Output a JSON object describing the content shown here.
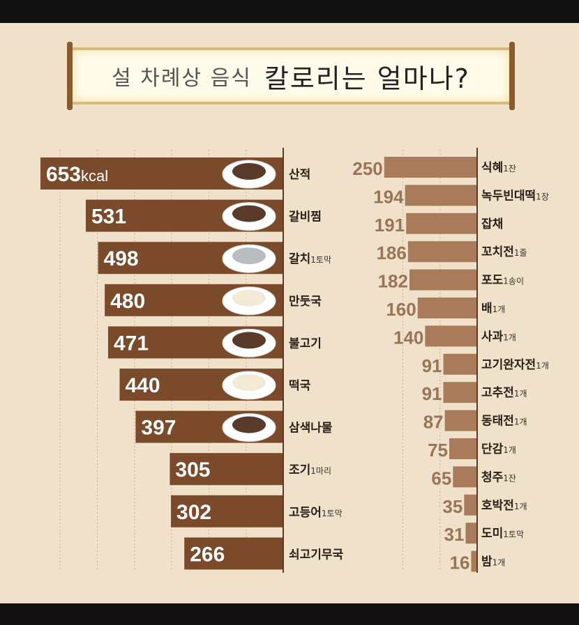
{
  "title": {
    "part1": "설 차례상 음식",
    "part2": "칼로리는 얼마나?"
  },
  "colors": {
    "left_bar": "#7a4a2b",
    "right_bar": "#a87c5b",
    "background": "#efe1ca",
    "right_value": "#9a7457"
  },
  "chart_data": [
    {
      "type": "bar",
      "orientation": "horizontal",
      "unit_label": "kcal",
      "categories": [
        "산적",
        "갈비찜",
        "갈치",
        "만둣국",
        "불고기",
        "떡국",
        "삼색나물",
        "조기",
        "고등어",
        "쇠고기무국"
      ],
      "servings": [
        "",
        "",
        "1토막",
        "",
        "",
        "",
        "",
        "1마리",
        "1토막",
        ""
      ],
      "values": [
        653,
        531,
        498,
        480,
        471,
        440,
        397,
        305,
        302,
        266
      ],
      "grid": true,
      "icons": [
        "sanjeok-plate-icon",
        "galbi-plate-icon",
        "fish-plate-icon",
        "dumpling-soup-icon",
        "bulgogi-plate-icon",
        "rice-cake-soup-icon",
        "namul-plate-icon",
        "",
        "",
        ""
      ]
    },
    {
      "type": "bar",
      "orientation": "horizontal",
      "categories": [
        "식혜",
        "녹두빈대떡",
        "잡채",
        "꼬치전",
        "포도",
        "배",
        "사과",
        "고기완자전",
        "고추전",
        "동태전",
        "단감",
        "청주",
        "호박전",
        "도미",
        "밤"
      ],
      "servings": [
        "1잔",
        "1장",
        "",
        "1줄",
        "1송이",
        "1개",
        "1개",
        "1개",
        "1개",
        "1개",
        "1개",
        "1잔",
        "1개",
        "1토막",
        "1개"
      ],
      "values": [
        250,
        194,
        191,
        186,
        182,
        160,
        140,
        91,
        91,
        87,
        75,
        65,
        35,
        31,
        16
      ],
      "grid": true
    }
  ]
}
